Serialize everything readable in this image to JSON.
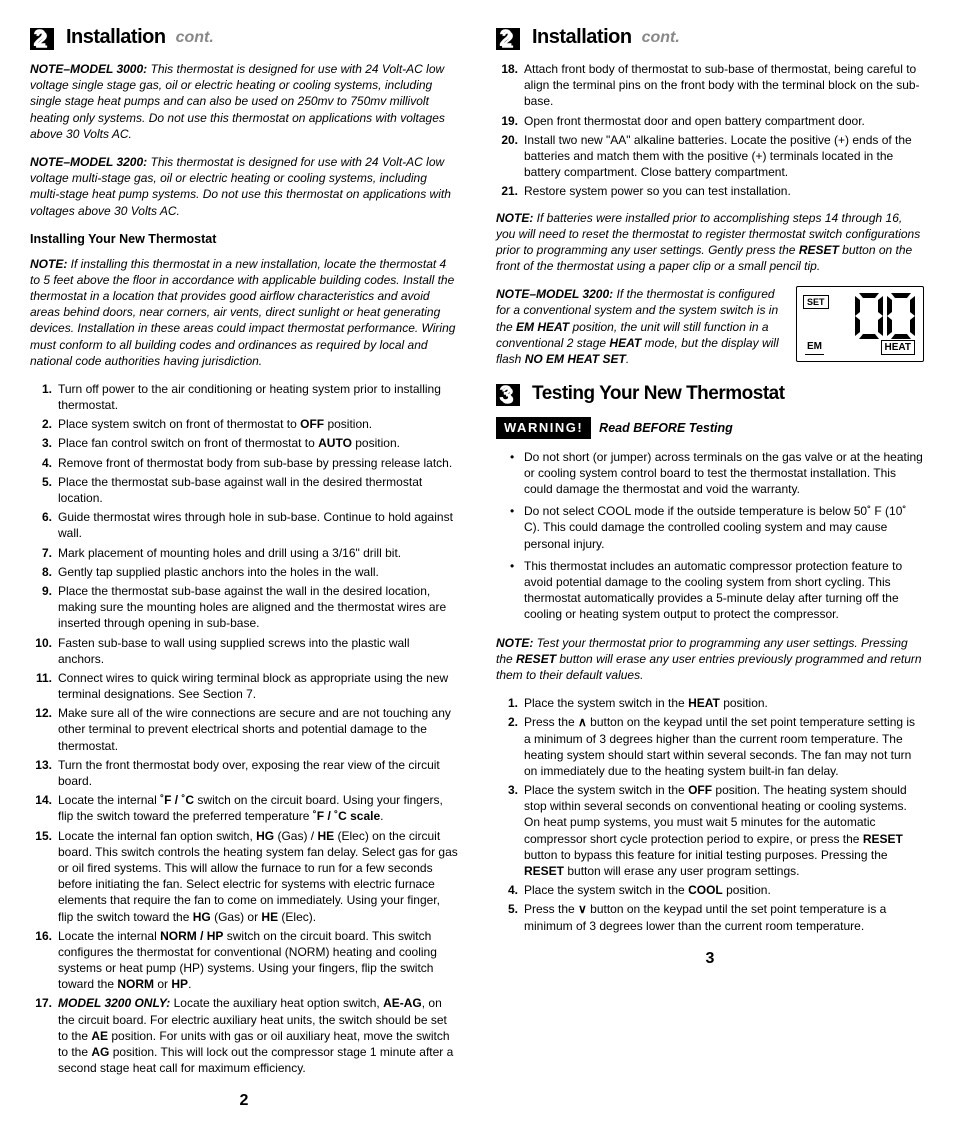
{
  "colors": {
    "text": "#000000",
    "bg": "#ffffff",
    "muted": "#888888"
  },
  "fonts": {
    "body_size_pt": 9,
    "heading_size_pt": 15,
    "heading_weight": 900
  },
  "left": {
    "section_number": "2",
    "section_title": "Installation",
    "section_subtitle": "cont.",
    "note3000_label": "NOTE–MODEL 3000:",
    "note3000_text": " This thermostat is designed for use with 24 Volt-AC low voltage single stage gas, oil or electric heating or cooling systems, including single stage heat pumps and can also be used on 250mv to 750mv millivolt heating only systems. Do not use this thermostat on applications with voltages above 30 Volts AC.",
    "note3200_label": "NOTE–MODEL 3200:",
    "note3200_text": " This thermostat is designed for use with 24 Volt-AC low voltage multi-stage gas, oil or electric heating or cooling systems, including multi-stage heat pump systems. Do not use this thermostat on applications with voltages above 30 Volts AC.",
    "install_head": "Installing Your New Thermostat",
    "install_note_label": "NOTE:",
    "install_note_text": "  If installing this thermostat in a new installation, locate the thermostat 4 to 5 feet above the floor in accordance with applicable building codes. Install the thermostat in a location that provides good airflow characteristics and avoid areas behind doors, near corners, air vents, direct sunlight or heat generating devices. Installation in these areas could impact thermostat performance. Wiring must conform to all building codes and ordinances as required by local and national code authorities having jurisdiction.",
    "steps": [
      "Turn off power to the air conditioning or heating system prior to installing thermostat.",
      "Place system switch on front of thermostat to <b>OFF</b> position.",
      "Place fan control switch on front of thermostat to <b>AUTO</b> position.",
      "Remove front of thermostat body from sub-base by pressing release latch.",
      "Place the thermostat sub-base against wall in the desired thermostat location.",
      "Guide thermostat wires through hole in sub-base. Continue to hold against wall.",
      "Mark placement of mounting holes and drill using a 3/16\" drill bit.",
      "Gently tap supplied plastic anchors into the holes in the wall.",
      "Place the thermostat sub-base against the wall in the desired location, making sure the mounting holes are aligned and the thermostat wires are inserted through opening in sub-base.",
      "Fasten sub-base to wall using supplied screws into the plastic wall anchors.",
      "Connect wires to quick wiring terminal block as appropriate using the new terminal designations. See Section 7.",
      "Make sure all of the wire connections are secure and are not touching any other terminal to prevent electrical shorts and potential damage to the thermostat.",
      "Turn the front thermostat body over, exposing the rear view of the circuit board.",
      "Locate the internal <b>˚F / ˚C</b> switch on the circuit board. Using your fingers, flip the switch toward the preferred temperature <b>˚F / ˚C scale</b>.",
      "Locate the internal fan option switch, <b>HG</b> (Gas) / <b>HE</b> (Elec) on the circuit board. This switch controls the heating system fan delay. Select gas for gas or oil fired systems. This will allow the furnace to run for a few seconds before initiating the fan. Select electric for systems with electric furnace elements that require the fan to come on immediately. Using your finger, flip the switch toward the <b>HG</b> (Gas) or <b>HE</b> (Elec).",
      "Locate the internal <b>NORM / HP</b> switch on the circuit board. This switch configures the thermostat for conventional (NORM) heating and cooling systems or heat pump (HP) systems. Using your fingers, flip the switch toward the <b>NORM</b> or <b>HP</b>.",
      "<b><i>MODEL 3200 ONLY:</i></b>  Locate the auxiliary heat option switch, <b>AE-AG</b>, on the circuit board. For electric auxiliary heat units, the switch should be set to the <b>AE</b> position. For units with gas or oil auxiliary heat, move the switch to the <b>AG</b> position. This will lock out the compressor stage 1 minute after a second stage heat call for maximum efficiency."
    ],
    "page_number": "2"
  },
  "right": {
    "section_number": "2",
    "section_title": "Installation",
    "section_subtitle": "cont.",
    "cont_steps_start": 18,
    "cont_steps": [
      "Attach front body of thermostat to sub-base of thermostat, being careful to align the terminal pins on the front body with the terminal block on the sub-base.",
      "Open front thermostat door and open battery compartment door.",
      "Install two new \"AA\" alkaline batteries. Locate the positive (+) ends of the batteries and match them with the positive (+) terminals located in the battery compartment. Close battery compartment.",
      "Restore system power so you can test installation."
    ],
    "batt_note_label": "NOTE:",
    "batt_note_text": "  If batteries were installed prior to accomplishing steps 14 through 16, you will need to reset the thermostat to register thermostat switch configurations prior to programming any user settings. Gently press the <b>RESET</b> button on the front of the thermostat using a paper clip or a small pencil tip.",
    "m3200_note_label": "NOTE–MODEL 3200:",
    "m3200_note_text": "  If the thermostat is configured for a conventional system and the system switch is in the <b>EM HEAT</b> position, the unit will still function in a conventional 2 stage <b>HEAT</b> mode, but the display will flash <b>NO EM HEAT SET</b>.",
    "lcd": {
      "set_label": "SET",
      "em_label": "EM",
      "heat_label": "HEAT",
      "digits": "70"
    },
    "section3_number": "3",
    "section3_title": "Testing Your New Thermostat",
    "warning_badge": "WARNING!",
    "warning_sub": "Read BEFORE Testing",
    "warn_bullets": [
      "Do not short (or jumper) across terminals on the gas valve or at the heating or cooling system control board to test the thermostat installation. This could damage the thermostat and void the warranty.",
      "Do not select COOL mode if the outside temperature is below 50˚ F (10˚ C). This could damage the controlled cooling system and may cause personal injury.",
      "This thermostat includes an automatic compressor protection feature to avoid potential damage to the cooling system from short cycling. This thermostat automatically provides a 5-minute delay after turning off the cooling or heating system output to protect the compressor."
    ],
    "test_note_label": "NOTE:",
    "test_note_text": "  Test your thermostat prior to programming any user settings. Pressing the <b>RESET</b> button will erase any user entries previously programmed and return them to their default values.",
    "test_steps": [
      "Place the system switch in the <b>HEAT</b> position.",
      "Press the <b class='up-caret'>&#8743;</b> button on the keypad until the set point temperature setting is a minimum of 3 degrees higher than the current room temperature. The heating system should start within several seconds. The fan may not turn on immediately due to the heating system built-in fan delay.",
      "Place the system switch in the <b>OFF</b> position. The heating system should stop within several seconds on conventional heating or cooling systems. On heat pump systems, you must wait 5 minutes for the automatic compressor short cycle protection period to expire, or press the <b>RESET</b> button to bypass this feature for initial testing purposes. Pressing the <b>RESET</b> button will erase any user program settings.",
      "Place the system switch in the <b>COOL</b> position.",
      "Press the <b class='down-caret'>&#8744;</b> button on the keypad until the set point temperature is a minimum of 3 degrees lower than the current room temperature."
    ],
    "page_number": "3"
  }
}
